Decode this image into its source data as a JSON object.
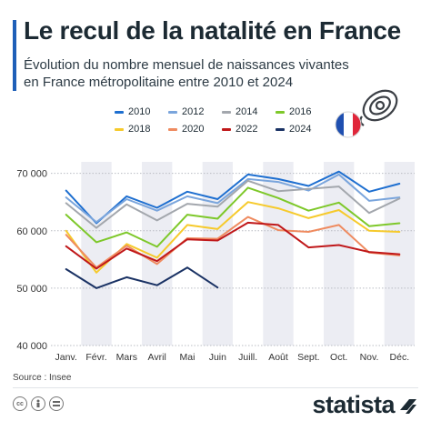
{
  "header": {
    "title": "Le recul de la natalité en France",
    "subtitle": "Évolution du nombre mensuel de naissances vivantes en France métropolitaine entre 2010 et 2024"
  },
  "source": "Source : Insee",
  "brand": "statista",
  "icons": [
    "baby-pacifier-icon",
    "france-flag-icon",
    "creative-commons-icon",
    "attribution-icon",
    "no-derivatives-icon",
    "statista-logo-icon"
  ],
  "colors": {
    "accent": "#1f5fb8",
    "band": "#ecedf3",
    "grid": "#b9bcc3",
    "text": "#1c2a33"
  },
  "chart_data": {
    "type": "line",
    "categories": [
      "Janv.",
      "Févr.",
      "Mars",
      "Avril",
      "Mai",
      "Juin",
      "Juill.",
      "Août",
      "Sept.",
      "Oct.",
      "Nov.",
      "Déc."
    ],
    "yticks": [
      "40 000",
      "50 000",
      "60 000",
      "70 000"
    ],
    "ylim": [
      40000,
      72000
    ],
    "grid": true,
    "legend": "top",
    "series": [
      {
        "name": "2010",
        "color": "#1e6fd0",
        "values": [
          67000,
          61300,
          66000,
          64000,
          66800,
          65500,
          69800,
          69000,
          67800,
          70300,
          66800,
          68200
        ]
      },
      {
        "name": "2012",
        "color": "#7aa5dc",
        "values": [
          65800,
          61500,
          65500,
          63500,
          66000,
          64800,
          69000,
          68500,
          67000,
          69800,
          65200,
          65800
        ]
      },
      {
        "name": "2014",
        "color": "#a3a7ad",
        "values": [
          64800,
          60500,
          64600,
          61800,
          64700,
          64200,
          68700,
          66900,
          67300,
          67700,
          63100,
          65600
        ]
      },
      {
        "name": "2016",
        "color": "#7ec82a",
        "values": [
          62800,
          58000,
          59700,
          57200,
          62800,
          62100,
          67500,
          65700,
          63500,
          64900,
          60800,
          61300
        ]
      },
      {
        "name": "2018",
        "color": "#f6ca2c",
        "values": [
          60000,
          52700,
          57700,
          55300,
          61000,
          60300,
          65000,
          63900,
          62200,
          63600,
          60000,
          59800
        ]
      },
      {
        "name": "2020",
        "color": "#ef8b60",
        "values": [
          59300,
          53600,
          57400,
          54200,
          58700,
          58600,
          62400,
          60100,
          59800,
          61000,
          56200,
          55700
        ]
      },
      {
        "name": "2022",
        "color": "#c0181a",
        "values": [
          57300,
          53400,
          56900,
          54700,
          58500,
          58300,
          61400,
          61000,
          57100,
          57500,
          56300,
          55900
        ]
      },
      {
        "name": "2024",
        "color": "#1a3264",
        "values": [
          53300,
          50000,
          51900,
          50500,
          53600,
          50100,
          null,
          null,
          null,
          null,
          null,
          null
        ]
      }
    ]
  }
}
